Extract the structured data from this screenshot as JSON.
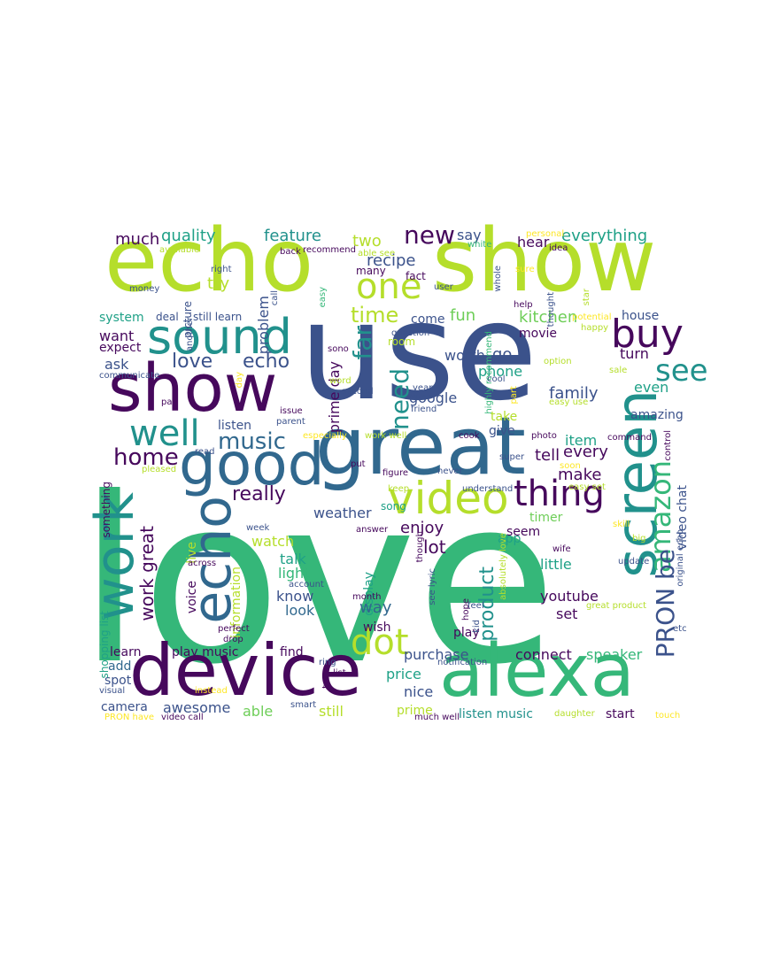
{
  "palette": {
    "dark_purple": "#46085c",
    "indigo": "#3b528b",
    "blue": "#31688e",
    "teal": "#21918c",
    "sea_green": "#1fa187",
    "green": "#35b779",
    "light_green": "#6ece58",
    "lime": "#b5de2b",
    "yellow": "#fde725"
  },
  "words": [
    {
      "text": "love",
      "color": "#35b779"
    },
    {
      "text": "use",
      "color": "#3b528b"
    },
    {
      "text": "echo",
      "color": "#b5de2b"
    },
    {
      "text": "show",
      "color": "#b5de2b"
    },
    {
      "text": "great",
      "color": "#31688e"
    },
    {
      "text": "alexa",
      "color": "#35b779"
    },
    {
      "text": "device",
      "color": "#46085c"
    },
    {
      "text": "show",
      "color": "#46085c"
    },
    {
      "text": "good",
      "color": "#31688e"
    },
    {
      "text": "screen",
      "color": "#21918c"
    },
    {
      "text": "sound",
      "color": "#21918c"
    },
    {
      "text": "echo",
      "color": "#31688e"
    },
    {
      "text": "work",
      "color": "#21918c"
    },
    {
      "text": "video",
      "color": "#b5de2b"
    },
    {
      "text": "one",
      "color": "#b5de2b"
    },
    {
      "text": "buy",
      "color": "#46085c"
    },
    {
      "text": "thing",
      "color": "#46085c"
    },
    {
      "text": "well",
      "color": "#21918c"
    },
    {
      "text": "dot",
      "color": "#b5de2b"
    },
    {
      "text": "amazon",
      "color": "#35b779"
    },
    {
      "text": "PRON be",
      "color": "#3b528b"
    },
    {
      "text": "new",
      "color": "#46085c"
    },
    {
      "text": "home",
      "color": "#46085c"
    },
    {
      "text": "music",
      "color": "#31688e"
    },
    {
      "text": "see",
      "color": "#21918c"
    },
    {
      "text": "far",
      "color": "#21918c"
    },
    {
      "text": "need",
      "color": "#21918c"
    },
    {
      "text": "time",
      "color": "#b5de2b"
    },
    {
      "text": "really",
      "color": "#46085c"
    },
    {
      "text": "product",
      "color": "#21918c"
    },
    {
      "text": "love",
      "color": "#3b528b"
    },
    {
      "text": "echo",
      "color": "#3b528b"
    },
    {
      "text": "feature",
      "color": "#21918c"
    },
    {
      "text": "quality",
      "color": "#1fa187"
    },
    {
      "text": "much",
      "color": "#46085c"
    },
    {
      "text": "everything",
      "color": "#1fa187"
    },
    {
      "text": "kitchen",
      "color": "#6ece58"
    },
    {
      "text": "recipe",
      "color": "#3b528b"
    },
    {
      "text": "go",
      "color": "#3b528b"
    },
    {
      "text": "family",
      "color": "#3b528b"
    },
    {
      "text": "work great",
      "color": "#46085c"
    },
    {
      "text": "weather",
      "color": "#3b528b"
    },
    {
      "text": "enjoy",
      "color": "#46085c"
    },
    {
      "text": "lot",
      "color": "#46085c"
    },
    {
      "text": "fun",
      "color": "#6ece58"
    },
    {
      "text": "tell",
      "color": "#46085c"
    },
    {
      "text": "make",
      "color": "#46085c"
    },
    {
      "text": "every",
      "color": "#46085c"
    },
    {
      "text": "item",
      "color": "#1fa187"
    },
    {
      "text": "two",
      "color": "#b5de2b"
    },
    {
      "text": "say",
      "color": "#3b528b"
    },
    {
      "text": "hear",
      "color": "#46085c"
    },
    {
      "text": "try",
      "color": "#b5de2b"
    },
    {
      "text": "problem",
      "color": "#3b528b"
    },
    {
      "text": "want",
      "color": "#46085c"
    },
    {
      "text": "expect",
      "color": "#46085c"
    },
    {
      "text": "ask",
      "color": "#3b528b"
    },
    {
      "text": "system",
      "color": "#1fa187"
    },
    {
      "text": "turn",
      "color": "#46085c"
    },
    {
      "text": "even",
      "color": "#1fa187"
    },
    {
      "text": "amazing",
      "color": "#3b528b"
    },
    {
      "text": "worth",
      "color": "#3b528b"
    },
    {
      "text": "phone",
      "color": "#1fa187"
    },
    {
      "text": "google",
      "color": "#3b528b"
    },
    {
      "text": "take",
      "color": "#b5de2b"
    },
    {
      "text": "give",
      "color": "#3b528b"
    },
    {
      "text": "movie",
      "color": "#46085c"
    },
    {
      "text": "house",
      "color": "#3b528b"
    },
    {
      "text": "listen",
      "color": "#3b528b"
    },
    {
      "text": "watch",
      "color": "#b5de2b"
    },
    {
      "text": "talk",
      "color": "#1fa187"
    },
    {
      "text": "light",
      "color": "#35b779"
    },
    {
      "text": "know",
      "color": "#3b528b"
    },
    {
      "text": "look",
      "color": "#31688e"
    },
    {
      "text": "voice",
      "color": "#46085c"
    },
    {
      "text": "display",
      "color": "#1fa187"
    },
    {
      "text": "way",
      "color": "#31688e"
    },
    {
      "text": "wish",
      "color": "#46085c"
    },
    {
      "text": "little",
      "color": "#1fa187"
    },
    {
      "text": "youtube",
      "color": "#46085c"
    },
    {
      "text": "set",
      "color": "#46085c"
    },
    {
      "text": "play",
      "color": "#46085c"
    },
    {
      "text": "connect",
      "color": "#46085c"
    },
    {
      "text": "speaker",
      "color": "#35b779"
    },
    {
      "text": "seem",
      "color": "#46085c"
    },
    {
      "text": "app",
      "color": "#1fa187"
    },
    {
      "text": "timer",
      "color": "#6ece58"
    },
    {
      "text": "learn",
      "color": "#46085c"
    },
    {
      "text": "play music",
      "color": "#46085c"
    },
    {
      "text": "find",
      "color": "#46085c"
    },
    {
      "text": "add",
      "color": "#31688e"
    },
    {
      "text": "spot",
      "color": "#3b528b"
    },
    {
      "text": "camera",
      "color": "#3b528b"
    },
    {
      "text": "awesome",
      "color": "#3b528b"
    },
    {
      "text": "able",
      "color": "#6ece58"
    },
    {
      "text": "purchase",
      "color": "#3b528b"
    },
    {
      "text": "price",
      "color": "#1fa187"
    },
    {
      "text": "nice",
      "color": "#3b528b"
    },
    {
      "text": "still",
      "color": "#b5de2b"
    },
    {
      "text": "prime",
      "color": "#b5de2b"
    },
    {
      "text": "listen music",
      "color": "#21918c"
    },
    {
      "text": "start",
      "color": "#46085c"
    },
    {
      "text": "song",
      "color": "#1fa187"
    },
    {
      "text": "information",
      "color": "#b5de2b"
    },
    {
      "text": "come",
      "color": "#3b528b"
    },
    {
      "text": "prime day",
      "color": "#46085c"
    },
    {
      "text": "video chat",
      "color": "#3b528b"
    },
    {
      "text": "something",
      "color": "#46085c"
    },
    {
      "text": "live",
      "color": "#b5de2b"
    },
    {
      "text": "shopping list",
      "color": "#1fa187"
    },
    {
      "text": "room",
      "color": "#b5de2b"
    },
    {
      "text": "still learn",
      "color": "#3b528b"
    },
    {
      "text": "deal",
      "color": "#3b528b"
    },
    {
      "text": "picture",
      "color": "#3b528b"
    },
    {
      "text": "money",
      "color": "#3b528b"
    },
    {
      "text": "right",
      "color": "#3b528b"
    },
    {
      "text": "another",
      "color": "#3b528b"
    },
    {
      "text": "available",
      "color": "#b5de2b"
    },
    {
      "text": "back",
      "color": "#46085c"
    },
    {
      "text": "recommend",
      "color": "#46085c"
    },
    {
      "text": "many",
      "color": "#46085c"
    },
    {
      "text": "fact",
      "color": "#46085c"
    },
    {
      "text": "easy",
      "color": "#35b779"
    },
    {
      "text": "call",
      "color": "#3b528b"
    },
    {
      "text": "user",
      "color": "#3b528b"
    },
    {
      "text": "white",
      "color": "#35b779"
    },
    {
      "text": "highly recommend",
      "color": "#35b779"
    },
    {
      "text": "whole",
      "color": "#3b528b"
    },
    {
      "text": "able see",
      "color": "#b5de2b"
    },
    {
      "text": "sure",
      "color": "#fde725"
    },
    {
      "text": "thought",
      "color": "#3b528b"
    },
    {
      "text": "idea",
      "color": "#46085c"
    },
    {
      "text": "personal",
      "color": "#fde725"
    },
    {
      "text": "star",
      "color": "#b5de2b"
    },
    {
      "text": "help",
      "color": "#46085c"
    },
    {
      "text": "potential",
      "color": "#fde725"
    },
    {
      "text": "happy",
      "color": "#b5de2b"
    },
    {
      "text": "question",
      "color": "#3b528b"
    },
    {
      "text": "sono",
      "color": "#46085c"
    },
    {
      "text": "option",
      "color": "#b5de2b"
    },
    {
      "text": "sale",
      "color": "#b5de2b"
    },
    {
      "text": "cool",
      "color": "#3b528b"
    },
    {
      "text": "part",
      "color": "#fde725"
    },
    {
      "text": "communicate",
      "color": "#3b528b"
    },
    {
      "text": "day",
      "color": "#fde725"
    },
    {
      "text": "second",
      "color": "#3b528b"
    },
    {
      "text": "word",
      "color": "#b5de2b"
    },
    {
      "text": "year",
      "color": "#3b528b"
    },
    {
      "text": "friend",
      "color": "#3b528b"
    },
    {
      "text": "easy use",
      "color": "#b5de2b"
    },
    {
      "text": "pay",
      "color": "#46085c"
    },
    {
      "text": "issue",
      "color": "#46085c"
    },
    {
      "text": "parent",
      "color": "#3b528b"
    },
    {
      "text": "especially",
      "color": "#fde725"
    },
    {
      "text": "work well",
      "color": "#b5de2b"
    },
    {
      "text": "cook",
      "color": "#46085c"
    },
    {
      "text": "photo",
      "color": "#46085c"
    },
    {
      "text": "command",
      "color": "#46085c"
    },
    {
      "text": "read",
      "color": "#3b528b"
    },
    {
      "text": "put",
      "color": "#46085c"
    },
    {
      "text": "never",
      "color": "#3b528b"
    },
    {
      "text": "super",
      "color": "#3b528b"
    },
    {
      "text": "soon",
      "color": "#fde725"
    },
    {
      "text": "control",
      "color": "#46085c"
    },
    {
      "text": "pleased",
      "color": "#b5de2b"
    },
    {
      "text": "figure",
      "color": "#46085c"
    },
    {
      "text": "keep",
      "color": "#b5de2b"
    },
    {
      "text": "understand",
      "color": "#3b528b"
    },
    {
      "text": "easy set",
      "color": "#b5de2b"
    },
    {
      "text": "answer",
      "color": "#46085c"
    },
    {
      "text": "skill",
      "color": "#fde725"
    },
    {
      "text": "week",
      "color": "#3b528b"
    },
    {
      "text": "wife",
      "color": "#46085c"
    },
    {
      "text": "big",
      "color": "#b5de2b"
    },
    {
      "text": "original echo",
      "color": "#3b528b"
    },
    {
      "text": "across",
      "color": "#46085c"
    },
    {
      "text": "though",
      "color": "#46085c"
    },
    {
      "text": "absolutely love",
      "color": "#b5de2b"
    },
    {
      "text": "update",
      "color": "#3b528b"
    },
    {
      "text": "account",
      "color": "#3b528b"
    },
    {
      "text": "see lyric",
      "color": "#3b528b"
    },
    {
      "text": "hope",
      "color": "#46085c"
    },
    {
      "text": "great product",
      "color": "#b5de2b"
    },
    {
      "text": "month",
      "color": "#46085c"
    },
    {
      "text": "perfect",
      "color": "#46085c"
    },
    {
      "text": "feel",
      "color": "#3b528b"
    },
    {
      "text": "kid",
      "color": "#3b528b"
    },
    {
      "text": "etc",
      "color": "#3b528b"
    },
    {
      "text": "drop",
      "color": "#46085c"
    },
    {
      "text": "ring",
      "color": "#3b528b"
    },
    {
      "text": "notification",
      "color": "#3b528b"
    },
    {
      "text": "list",
      "color": "#46085c"
    },
    {
      "text": "tv",
      "color": "#46085c"
    },
    {
      "text": "instead",
      "color": "#fde725"
    },
    {
      "text": "visual",
      "color": "#3b528b"
    },
    {
      "text": "smart",
      "color": "#3b528b"
    },
    {
      "text": "PRON have",
      "color": "#fde725"
    },
    {
      "text": "video call",
      "color": "#46085c"
    },
    {
      "text": "much well",
      "color": "#46085c"
    },
    {
      "text": "daughter",
      "color": "#b5de2b"
    },
    {
      "text": "touch",
      "color": "#fde725"
    }
  ]
}
